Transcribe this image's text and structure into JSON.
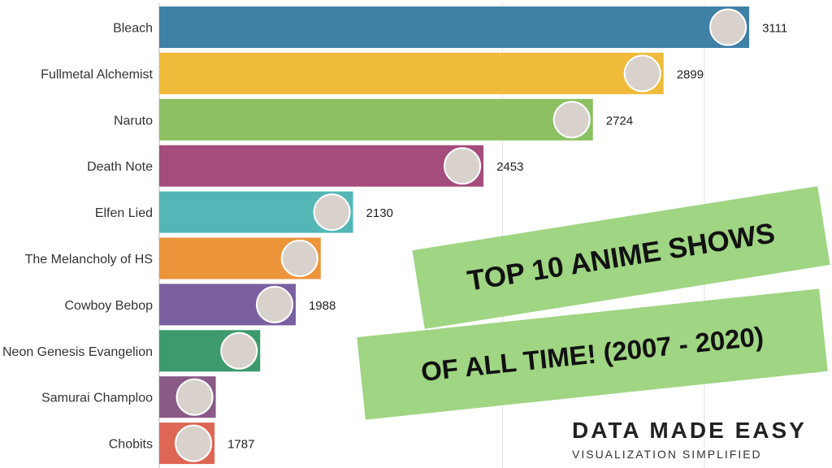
{
  "chart_data": {
    "type": "bar",
    "orientation": "horizontal",
    "categories": [
      "Bleach",
      "Fullmetal Alchemist",
      "Naruto",
      "Death Note",
      "Elfen Lied",
      "The Melancholy of HS",
      "Cowboy Bebop",
      "Neon Genesis Evangelion",
      "Samurai Champloo",
      "Chobits"
    ],
    "values": [
      3111,
      2899,
      2724,
      2453,
      2130,
      2050,
      1988,
      1900,
      1790,
      1787
    ],
    "value_labels": [
      "3111",
      "2899",
      "2724",
      "2453",
      "2130",
      "",
      "1988",
      "",
      "",
      "1787"
    ],
    "colors": [
      "#3f80a6",
      "#f0bb3a",
      "#8cc063",
      "#a44c7c",
      "#54b6b6",
      "#ec943a",
      "#7a60a1",
      "#3c9a6d",
      "#8a5a87",
      "#de6654"
    ],
    "x_range": [
      1650,
      3300
    ],
    "grid": true,
    "legend": "none"
  },
  "overlay": {
    "line1": "TOP 10 ANIME SHOWS",
    "line2": "OF ALL TIME! (2007 - 2020)",
    "color": "#9fd583"
  },
  "brand": {
    "title": "DATA MADE EASY",
    "subtitle": "VISUALIZATION SIMPLIFIED"
  }
}
